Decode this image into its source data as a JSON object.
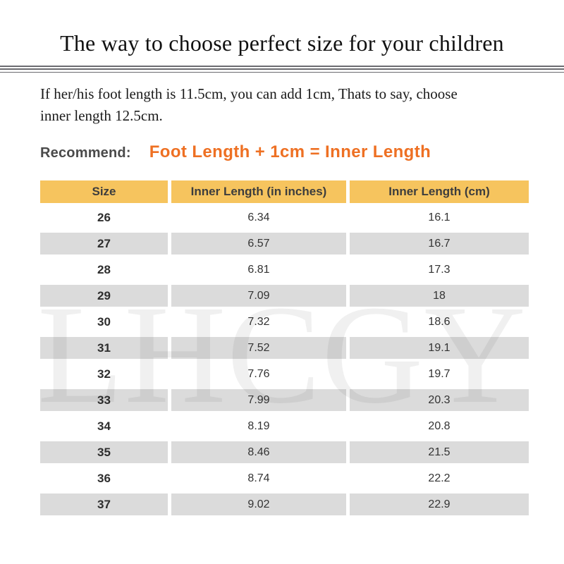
{
  "title": "The way to choose perfect size for your children",
  "intro_lines": [
    "If her/his foot length is 11.5cm, you can add 1cm, Thats to say, choose",
    "inner length 12.5cm."
  ],
  "recommend": {
    "label": "Recommend:",
    "formula": "Foot Length + 1cm = Inner Length"
  },
  "watermark": "LHCGY",
  "colors": {
    "accent_orange": "#EE7023",
    "header_bg": "#F6C45E",
    "row_alt_bg": "#DBDBDB",
    "recommend_label": "#4A4A4A"
  },
  "table": {
    "headers": [
      "Size",
      "Inner Length (in inches)",
      "Inner Length (cm)"
    ],
    "rows": [
      [
        "26",
        "6.34",
        "16.1"
      ],
      [
        "27",
        "6.57",
        "16.7"
      ],
      [
        "28",
        "6.81",
        "17.3"
      ],
      [
        "29",
        "7.09",
        "18"
      ],
      [
        "30",
        "7.32",
        "18.6"
      ],
      [
        "31",
        "7.52",
        "19.1"
      ],
      [
        "32",
        "7.76",
        "19.7"
      ],
      [
        "33",
        "7.99",
        "20.3"
      ],
      [
        "34",
        "8.19",
        "20.8"
      ],
      [
        "35",
        "8.46",
        "21.5"
      ],
      [
        "36",
        "8.74",
        "22.2"
      ],
      [
        "37",
        "9.02",
        "22.9"
      ]
    ]
  }
}
